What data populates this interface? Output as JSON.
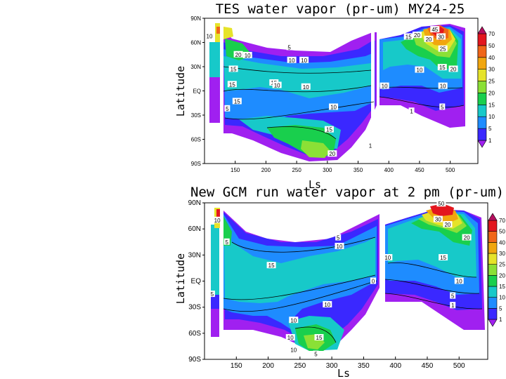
{
  "chart_data": [
    {
      "type": "heatmap",
      "subtype": "filled-contour",
      "title": "TES water vapor (pr-um) MY24-25",
      "xlabel": "Ls",
      "ylabel": "Latitude",
      "xlim": [
        100,
        545
      ],
      "ylim": [
        -90,
        90
      ],
      "xticks": [
        "150",
        "200",
        "250",
        "300",
        "350",
        "400",
        "450",
        "500"
      ],
      "xtick_values": [
        150,
        200,
        250,
        300,
        350,
        400,
        450,
        500
      ],
      "yticks": [
        "90N",
        "60N",
        "30N",
        "EQ",
        "30S",
        "60S",
        "90S"
      ],
      "ytick_values": [
        90,
        60,
        30,
        0,
        -30,
        -60,
        -90
      ],
      "contour_labels": [
        {
          "text": "10",
          "x": 108,
          "y": 68
        },
        {
          "text": "20",
          "x": 155,
          "y": 45
        },
        {
          "text": "10",
          "x": 170,
          "y": 44
        },
        {
          "text": "15",
          "x": 147,
          "y": 27
        },
        {
          "text": "5",
          "x": 238,
          "y": 54
        },
        {
          "text": "10",
          "x": 242,
          "y": 38
        },
        {
          "text": "10",
          "x": 262,
          "y": 38
        },
        {
          "text": "15",
          "x": 213,
          "y": 10
        },
        {
          "text": "15",
          "x": 145,
          "y": 8
        },
        {
          "text": "10",
          "x": 218,
          "y": 7
        },
        {
          "text": "10",
          "x": 265,
          "y": 5
        },
        {
          "text": "15",
          "x": 153,
          "y": -13
        },
        {
          "text": "5",
          "x": 137,
          "y": -22
        },
        {
          "text": "10",
          "x": 310,
          "y": -20
        },
        {
          "text": "15",
          "x": 303,
          "y": -48
        },
        {
          "text": "20",
          "x": 308,
          "y": -78
        },
        {
          "text": "1",
          "x": 370,
          "y": -68
        },
        {
          "text": "10",
          "x": 393,
          "y": 6
        },
        {
          "text": "15",
          "x": 432,
          "y": 67
        },
        {
          "text": "20",
          "x": 446,
          "y": 69
        },
        {
          "text": "20",
          "x": 465,
          "y": 64
        },
        {
          "text": "45",
          "x": 475,
          "y": 76
        },
        {
          "text": "30",
          "x": 485,
          "y": 67
        },
        {
          "text": "25",
          "x": 488,
          "y": 52
        },
        {
          "text": "10",
          "x": 450,
          "y": 26
        },
        {
          "text": "15",
          "x": 487,
          "y": 29
        },
        {
          "text": "20",
          "x": 505,
          "y": 27
        },
        {
          "text": "10",
          "x": 488,
          "y": 6
        },
        {
          "text": "5",
          "x": 487,
          "y": -20
        },
        {
          "text": "1",
          "x": 437,
          "y": -25
        }
      ],
      "color_levels": [
        "1",
        "5",
        "10",
        "15",
        "20",
        "25",
        "30",
        "40",
        "50",
        "70"
      ],
      "colors": [
        "#a020f0",
        "#3a28ff",
        "#1e8cff",
        "#17c9c9",
        "#19cf4d",
        "#8be036",
        "#e6e32a",
        "#f1a60e",
        "#f06618",
        "#e3161e",
        "#b50f5e"
      ]
    },
    {
      "type": "heatmap",
      "subtype": "filled-contour",
      "title": "New GCM run water vapor at 2 pm (pr-um)",
      "xlabel": "Ls",
      "ylabel": "Latitude",
      "xlim": [
        100,
        545
      ],
      "ylim": [
        -90,
        90
      ],
      "xticks": [
        "150",
        "200",
        "250",
        "300",
        "350",
        "400",
        "450",
        "500"
      ],
      "xtick_values": [
        150,
        200,
        250,
        300,
        350,
        400,
        450,
        500
      ],
      "yticks": [
        "90N",
        "60N",
        "30N",
        "EQ",
        "30S",
        "60S",
        "90S"
      ],
      "ytick_values": [
        90,
        60,
        30,
        0,
        -30,
        -60,
        -90
      ],
      "contour_labels": [
        {
          "text": "10",
          "x": 120,
          "y": 70
        },
        {
          "text": "5",
          "x": 135,
          "y": 45
        },
        {
          "text": "15",
          "x": 205,
          "y": 18
        },
        {
          "text": "5",
          "x": 112,
          "y": -15
        },
        {
          "text": "5",
          "x": 310,
          "y": 50
        },
        {
          "text": "10",
          "x": 312,
          "y": 40
        },
        {
          "text": "10",
          "x": 293,
          "y": -27
        },
        {
          "text": "10",
          "x": 240,
          "y": -45
        },
        {
          "text": "10",
          "x": 235,
          "y": -65
        },
        {
          "text": "10",
          "x": 240,
          "y": -79
        },
        {
          "text": "15",
          "x": 280,
          "y": -65
        },
        {
          "text": "5",
          "x": 275,
          "y": -84
        },
        {
          "text": "0",
          "x": 365,
          "y": 0
        },
        {
          "text": "10",
          "x": 388,
          "y": 27
        },
        {
          "text": "50",
          "x": 472,
          "y": 89
        },
        {
          "text": "30",
          "x": 467,
          "y": 71
        },
        {
          "text": "20",
          "x": 482,
          "y": 65
        },
        {
          "text": "20",
          "x": 512,
          "y": 50
        },
        {
          "text": "15",
          "x": 475,
          "y": 27
        },
        {
          "text": "10",
          "x": 500,
          "y": 0
        },
        {
          "text": "5",
          "x": 490,
          "y": -17
        },
        {
          "text": "1",
          "x": 490,
          "y": -28
        }
      ],
      "color_levels": [
        "1",
        "5",
        "10",
        "15",
        "20",
        "25",
        "30",
        "40",
        "50",
        "70"
      ],
      "colors": [
        "#a020f0",
        "#3a28ff",
        "#1e8cff",
        "#17c9c9",
        "#19cf4d",
        "#8be036",
        "#e6e32a",
        "#f1a60e",
        "#f06618",
        "#e3161e",
        "#b50f5e"
      ]
    }
  ]
}
